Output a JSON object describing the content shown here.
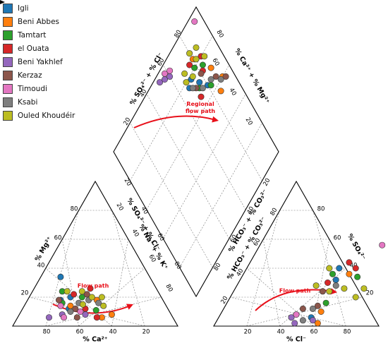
{
  "chart_data": {
    "type": "scatter",
    "title": "",
    "legend": {
      "placement": "top-left",
      "entries": [
        {
          "name": "Igli",
          "color": "#1f77b4"
        },
        {
          "name": "Beni Abbes",
          "color": "#ff7f0e"
        },
        {
          "name": "Tamtart",
          "color": "#2ca02c"
        },
        {
          "name": "el Ouata",
          "color": "#d62728"
        },
        {
          "name": "Beni Yakhlef",
          "color": "#9467bd"
        },
        {
          "name": "Kerzaz",
          "color": "#8c564b"
        },
        {
          "name": "Timoudi",
          "color": "#e377c2"
        },
        {
          "name": "Ksabi",
          "color": "#7f7f7f"
        },
        {
          "name": "Ouled Khoudéir",
          "color": "#bcbd22"
        }
      ]
    },
    "cation_triangle": {
      "xlabel": "% Ca²⁺",
      "left_label": "% Mg²⁺",
      "right_label": "% Na⁺ + % K⁺",
      "bottom_ticks": [
        "80",
        "60",
        "40",
        "20"
      ],
      "left_ticks": [
        "20",
        "40",
        "60",
        "80"
      ],
      "right_ticks": [
        "20",
        "40",
        "60",
        "80"
      ],
      "annotation": "Flow path",
      "points": [
        {
          "s": 0,
          "ca": 55,
          "mg": 20
        },
        {
          "s": 0,
          "ca": 54,
          "mg": 34
        },
        {
          "s": 0,
          "ca": 60,
          "mg": 12
        },
        {
          "s": 0,
          "ca": 62,
          "mg": 18
        },
        {
          "s": 1,
          "ca": 36,
          "mg": 8
        },
        {
          "s": 1,
          "ca": 43,
          "mg": 6
        },
        {
          "s": 1,
          "ca": 58,
          "mg": 14
        },
        {
          "s": 1,
          "ca": 40,
          "mg": 18
        },
        {
          "s": 2,
          "ca": 48,
          "mg": 20
        },
        {
          "s": 2,
          "ca": 58,
          "mg": 24
        },
        {
          "s": 2,
          "ca": 44,
          "mg": 11
        },
        {
          "s": 2,
          "ca": 62,
          "mg": 16
        },
        {
          "s": 3,
          "ca": 52,
          "mg": 22
        },
        {
          "s": 3,
          "ca": 40,
          "mg": 26
        },
        {
          "s": 3,
          "ca": 50,
          "mg": 12
        },
        {
          "s": 3,
          "ca": 46,
          "mg": 6
        },
        {
          "s": 4,
          "ca": 75,
          "mg": 6
        },
        {
          "s": 4,
          "ca": 66,
          "mg": 8
        },
        {
          "s": 4,
          "ca": 52,
          "mg": 8
        },
        {
          "s": 5,
          "ca": 63,
          "mg": 18
        },
        {
          "s": 5,
          "ca": 56,
          "mg": 12
        },
        {
          "s": 5,
          "ca": 44,
          "mg": 22
        },
        {
          "s": 5,
          "ca": 58,
          "mg": 6
        },
        {
          "s": 6,
          "ca": 64,
          "mg": 14
        },
        {
          "s": 6,
          "ca": 54,
          "mg": 10
        },
        {
          "s": 6,
          "ca": 66,
          "mg": 6
        },
        {
          "s": 7,
          "ca": 45,
          "mg": 18
        },
        {
          "s": 7,
          "ca": 52,
          "mg": 16
        },
        {
          "s": 7,
          "ca": 40,
          "mg": 16
        },
        {
          "s": 7,
          "ca": 60,
          "mg": 10
        },
        {
          "s": 8,
          "ca": 42,
          "mg": 20
        },
        {
          "s": 8,
          "ca": 50,
          "mg": 15
        },
        {
          "s": 8,
          "ca": 46,
          "mg": 24
        },
        {
          "s": 8,
          "ca": 38,
          "mg": 14
        },
        {
          "s": 8,
          "ca": 36,
          "mg": 20
        },
        {
          "s": 8,
          "ca": 55,
          "mg": 24
        }
      ]
    },
    "anion_triangle": {
      "xlabel": "% Cl⁻",
      "left_label": "% HCO₃⁻ + % CO₃²⁻",
      "right_label": "% SO₄²⁻",
      "bottom_ticks": [
        "20",
        "40",
        "60",
        "80"
      ],
      "left_ticks": [
        "20",
        "40",
        "60",
        "80"
      ],
      "right_ticks": [
        "20",
        "40",
        "60",
        "80"
      ],
      "annotation": "Flow path",
      "points": [
        {
          "s": 0,
          "cl": 56,
          "so4": 40
        },
        {
          "s": 0,
          "cl": 56,
          "so4": 6
        },
        {
          "s": 0,
          "cl": 58,
          "so4": 32
        },
        {
          "s": 1,
          "cl": 62,
          "so4": 2
        },
        {
          "s": 1,
          "cl": 60,
          "so4": 10
        },
        {
          "s": 1,
          "cl": 64,
          "so4": 36
        },
        {
          "s": 2,
          "cl": 54,
          "so4": 36
        },
        {
          "s": 2,
          "cl": 70,
          "so4": 34
        },
        {
          "s": 2,
          "cl": 60,
          "so4": 16
        },
        {
          "s": 3,
          "cl": 60,
          "so4": 44
        },
        {
          "s": 3,
          "cl": 54,
          "so4": 30
        },
        {
          "s": 3,
          "cl": 66,
          "so4": 40
        },
        {
          "s": 4,
          "cl": 44,
          "so4": 6
        },
        {
          "s": 4,
          "cl": 48,
          "so4": 2
        },
        {
          "s": 4,
          "cl": 58,
          "so4": 4
        },
        {
          "s": 5,
          "cl": 54,
          "so4": 24
        },
        {
          "s": 5,
          "cl": 48,
          "so4": 12
        },
        {
          "s": 5,
          "cl": 56,
          "so4": 14
        },
        {
          "s": 6,
          "cl": 74,
          "so4": 56
        },
        {
          "s": 6,
          "cl": 46,
          "so4": 8
        },
        {
          "s": 7,
          "cl": 60,
          "so4": 28
        },
        {
          "s": 7,
          "cl": 54,
          "so4": 12
        },
        {
          "s": 7,
          "cl": 52,
          "so4": 4
        },
        {
          "s": 8,
          "cl": 58,
          "so4": 24
        },
        {
          "s": 8,
          "cl": 76,
          "so4": 20
        },
        {
          "s": 8,
          "cl": 48,
          "so4": 28
        },
        {
          "s": 8,
          "cl": 50,
          "so4": 40
        },
        {
          "s": 8,
          "cl": 78,
          "so4": 26
        },
        {
          "s": 8,
          "cl": 66,
          "so4": 26
        }
      ]
    },
    "diamond": {
      "upper_left_label": "% SO₄²⁻ + % Cl⁻",
      "upper_right_label": "% Ca²⁺ + % Mg²⁺",
      "lower_left_label": "% SO₄²⁻ + % Cl⁻",
      "lower_right_label": "% Na⁺ + % K⁺",
      "lower_right_label_2": "% HCO₃⁻ + % CO₃²⁻",
      "ticks": [
        "20",
        "40",
        "60",
        "80"
      ],
      "annotation": "Regional flow path",
      "points": [
        {
          "s": 0,
          "cm": 72,
          "sc": 78
        },
        {
          "s": 0,
          "cm": 76,
          "sc": 72
        },
        {
          "s": 0,
          "cm": 80,
          "sc": 66
        },
        {
          "s": 0,
          "cm": 68,
          "sc": 76
        },
        {
          "s": 1,
          "cm": 92,
          "sc": 60
        },
        {
          "s": 1,
          "cm": 86,
          "sc": 56
        },
        {
          "s": 1,
          "cm": 80,
          "sc": 84
        },
        {
          "s": 1,
          "cm": 88,
          "sc": 70
        },
        {
          "s": 2,
          "cm": 78,
          "sc": 80
        },
        {
          "s": 2,
          "cm": 84,
          "sc": 76
        },
        {
          "s": 2,
          "cm": 74,
          "sc": 70
        },
        {
          "s": 2,
          "cm": 82,
          "sc": 64
        },
        {
          "s": 3,
          "cm": 86,
          "sc": 80
        },
        {
          "s": 3,
          "cm": 76,
          "sc": 84
        },
        {
          "s": 3,
          "cm": 72,
          "sc": 66
        },
        {
          "s": 3,
          "cm": 82,
          "sc": 74
        },
        {
          "s": 4,
          "cm": 52,
          "sc": 96
        },
        {
          "s": 4,
          "cm": 56,
          "sc": 94
        },
        {
          "s": 4,
          "cm": 60,
          "sc": 92
        },
        {
          "s": 5,
          "cm": 88,
          "sc": 64
        },
        {
          "s": 5,
          "cm": 80,
          "sc": 74
        },
        {
          "s": 5,
          "cm": 72,
          "sc": 72
        },
        {
          "s": 5,
          "cm": 94,
          "sc": 58
        },
        {
          "s": 6,
          "cm": 58,
          "sc": 96
        },
        {
          "s": 6,
          "cm": 94,
          "sc": 96
        },
        {
          "s": 6,
          "cm": 62,
          "sc": 94
        },
        {
          "s": 7,
          "cm": 84,
          "sc": 66
        },
        {
          "s": 7,
          "cm": 70,
          "sc": 74
        },
        {
          "s": 7,
          "cm": 76,
          "sc": 68
        },
        {
          "s": 7,
          "cm": 90,
          "sc": 60
        },
        {
          "s": 8,
          "cm": 68,
          "sc": 80
        },
        {
          "s": 8,
          "cm": 74,
          "sc": 78
        },
        {
          "s": 8,
          "cm": 82,
          "sc": 82
        },
        {
          "s": 8,
          "cm": 86,
          "sc": 86
        },
        {
          "s": 8,
          "cm": 80,
          "sc": 88
        },
        {
          "s": 8,
          "cm": 70,
          "sc": 84
        },
        {
          "s": 8,
          "cm": 88,
          "sc": 78
        }
      ]
    },
    "grid": true
  }
}
